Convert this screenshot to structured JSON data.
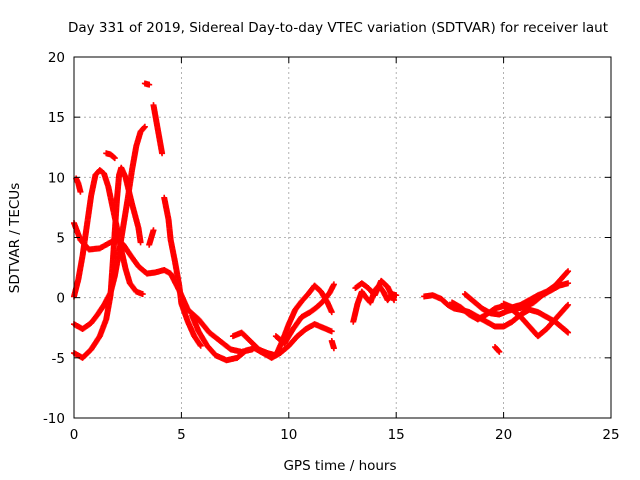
{
  "chart_data": {
    "type": "scatter",
    "title": "Day 331 of 2019, Sidereal Day-to-day VTEC variation (SDTVAR) for receiver laut",
    "xlabel": "GPS time / hours",
    "ylabel": "SDTVAR / TECUs",
    "xlim": [
      0,
      25
    ],
    "ylim": [
      -10,
      20
    ],
    "xticks": [
      "0",
      "5",
      "10",
      "15",
      "20",
      "25"
    ],
    "yticks": [
      "-10",
      "-5",
      "0",
      "5",
      "10",
      "15",
      "20"
    ],
    "grid": true,
    "marker": "+",
    "series": [
      {
        "name": "SDTVAR",
        "color": "#ff0000",
        "tracks": [
          [
            [
              0.0,
              6.2
            ],
            [
              0.3,
              4.8
            ],
            [
              0.7,
              4.0
            ],
            [
              1.2,
              4.1
            ],
            [
              1.7,
              4.6
            ],
            [
              2.0,
              4.9
            ],
            [
              2.3,
              4.4
            ],
            [
              2.6,
              3.6
            ],
            [
              3.0,
              2.6
            ],
            [
              3.4,
              2.0
            ],
            [
              3.8,
              2.1
            ],
            [
              4.2,
              2.3
            ],
            [
              4.5,
              2.0
            ],
            [
              4.9,
              0.6
            ],
            [
              5.3,
              -1.0
            ],
            [
              5.8,
              -1.8
            ],
            [
              6.3,
              -2.9
            ],
            [
              6.8,
              -3.6
            ],
            [
              7.3,
              -4.3
            ],
            [
              7.8,
              -4.5
            ],
            [
              8.3,
              -4.3
            ]
          ],
          [
            [
              0.0,
              0.1
            ],
            [
              0.2,
              1.5
            ],
            [
              0.4,
              3.5
            ],
            [
              0.6,
              6.0
            ],
            [
              0.8,
              8.5
            ],
            [
              1.0,
              10.2
            ],
            [
              1.2,
              10.6
            ],
            [
              1.4,
              10.3
            ],
            [
              1.6,
              9.2
            ],
            [
              1.8,
              7.5
            ],
            [
              2.0,
              5.8
            ],
            [
              2.2,
              4.0
            ],
            [
              2.4,
              2.4
            ],
            [
              2.6,
              1.2
            ],
            [
              2.9,
              0.5
            ],
            [
              3.2,
              0.3
            ]
          ],
          [
            [
              0.0,
              -2.2
            ],
            [
              0.4,
              -2.6
            ],
            [
              0.8,
              -2.1
            ],
            [
              1.1,
              -1.4
            ],
            [
              1.4,
              -0.6
            ],
            [
              1.7,
              0.4
            ],
            [
              1.9,
              1.8
            ],
            [
              2.1,
              3.8
            ],
            [
              2.3,
              6.0
            ],
            [
              2.5,
              8.2
            ],
            [
              2.7,
              10.6
            ],
            [
              2.9,
              12.6
            ],
            [
              3.1,
              13.8
            ],
            [
              3.3,
              14.2
            ]
          ],
          [
            [
              0.0,
              -4.6
            ],
            [
              0.4,
              -5.0
            ],
            [
              0.8,
              -4.3
            ],
            [
              1.2,
              -3.2
            ],
            [
              1.5,
              -1.8
            ],
            [
              1.7,
              0.2
            ],
            [
              1.8,
              2.8
            ],
            [
              1.9,
              5.5
            ],
            [
              2.0,
              8.2
            ],
            [
              2.1,
              10.2
            ],
            [
              2.2,
              10.8
            ],
            [
              2.4,
              10.0
            ],
            [
              2.7,
              7.8
            ],
            [
              3.0,
              5.8
            ],
            [
              3.1,
              4.6
            ]
          ],
          [
            [
              0.1,
              9.9
            ],
            [
              0.2,
              9.5
            ],
            [
              0.3,
              8.8
            ]
          ],
          [
            [
              1.5,
              12.0
            ],
            [
              1.7,
              11.9
            ],
            [
              1.9,
              11.6
            ]
          ],
          [
            [
              3.3,
              17.8
            ],
            [
              3.5,
              17.7
            ]
          ],
          [
            [
              3.7,
              16.0
            ],
            [
              3.8,
              15.0
            ],
            [
              3.9,
              14.0
            ],
            [
              4.0,
              13.0
            ],
            [
              4.1,
              12.0
            ]
          ],
          [
            [
              4.2,
              8.3
            ],
            [
              4.4,
              6.5
            ],
            [
              4.5,
              4.8
            ],
            [
              4.7,
              3.0
            ],
            [
              4.9,
              1.0
            ],
            [
              5.0,
              -0.5
            ],
            [
              5.3,
              -2.0
            ],
            [
              5.6,
              -3.2
            ],
            [
              5.9,
              -4.0
            ]
          ],
          [
            [
              3.5,
              4.4
            ],
            [
              3.6,
              5.0
            ],
            [
              3.7,
              5.6
            ]
          ],
          [
            [
              5.5,
              -1.5
            ],
            [
              5.8,
              -2.8
            ],
            [
              6.2,
              -4.0
            ],
            [
              6.6,
              -4.8
            ],
            [
              7.1,
              -5.2
            ],
            [
              7.6,
              -5.0
            ],
            [
              8.0,
              -4.4
            ],
            [
              8.4,
              -4.2
            ],
            [
              8.8,
              -4.6
            ],
            [
              9.2,
              -5.0
            ],
            [
              9.6,
              -4.6
            ],
            [
              10.0,
              -4.0
            ],
            [
              10.4,
              -3.2
            ],
            [
              10.8,
              -2.6
            ],
            [
              11.2,
              -2.2
            ],
            [
              11.6,
              -2.5
            ],
            [
              12.0,
              -2.8
            ]
          ],
          [
            [
              7.4,
              -3.2
            ],
            [
              7.8,
              -2.9
            ],
            [
              8.2,
              -3.6
            ],
            [
              8.6,
              -4.3
            ],
            [
              9.0,
              -4.6
            ],
            [
              9.4,
              -4.8
            ],
            [
              9.7,
              -3.6
            ],
            [
              10.0,
              -2.2
            ],
            [
              10.3,
              -1.0
            ],
            [
              10.6,
              -0.3
            ],
            [
              10.9,
              0.3
            ],
            [
              11.2,
              1.0
            ],
            [
              11.5,
              0.5
            ],
            [
              11.8,
              -0.4
            ],
            [
              12.0,
              -1.2
            ]
          ],
          [
            [
              9.4,
              -3.2
            ],
            [
              9.8,
              -3.8
            ],
            [
              10.2,
              -2.6
            ],
            [
              10.6,
              -1.6
            ],
            [
              11.0,
              -1.2
            ],
            [
              11.3,
              -0.8
            ],
            [
              11.6,
              -0.3
            ],
            [
              11.9,
              0.4
            ],
            [
              12.1,
              1.1
            ]
          ],
          [
            [
              12.0,
              -3.6
            ],
            [
              12.1,
              -4.2
            ]
          ],
          [
            [
              13.0,
              -2.0
            ],
            [
              13.2,
              -0.5
            ],
            [
              13.4,
              0.5
            ],
            [
              13.6,
              0.0
            ],
            [
              13.8,
              -0.4
            ],
            [
              14.0,
              0.6
            ],
            [
              14.2,
              1.0
            ],
            [
              14.4,
              0.5
            ],
            [
              14.6,
              -0.2
            ],
            [
              14.8,
              0.3
            ],
            [
              15.0,
              0.2
            ]
          ],
          [
            [
              13.1,
              0.8
            ],
            [
              13.4,
              1.2
            ],
            [
              13.7,
              0.8
            ],
            [
              14.0,
              0.2
            ],
            [
              14.3,
              1.4
            ],
            [
              14.6,
              0.9
            ],
            [
              14.9,
              -0.2
            ]
          ],
          [
            [
              16.3,
              0.1
            ],
            [
              16.7,
              0.2
            ],
            [
              17.1,
              -0.1
            ],
            [
              17.4,
              -0.6
            ],
            [
              17.7,
              -0.9
            ],
            [
              18.0,
              -1.0
            ],
            [
              18.4,
              -1.2
            ],
            [
              18.8,
              -1.6
            ],
            [
              19.2,
              -2.0
            ],
            [
              19.6,
              -2.4
            ],
            [
              20.0,
              -2.4
            ],
            [
              20.4,
              -2.0
            ],
            [
              20.8,
              -1.4
            ],
            [
              21.2,
              -1.0
            ],
            [
              21.6,
              -1.2
            ],
            [
              22.0,
              -1.6
            ],
            [
              22.4,
              -2.0
            ],
            [
              22.8,
              -2.6
            ],
            [
              23.0,
              -2.9
            ]
          ],
          [
            [
              17.6,
              -0.4
            ],
            [
              18.0,
              -0.8
            ],
            [
              18.4,
              -1.4
            ],
            [
              18.8,
              -1.8
            ],
            [
              19.2,
              -1.4
            ],
            [
              19.6,
              -0.9
            ],
            [
              20.0,
              -0.7
            ],
            [
              20.4,
              -1.0
            ],
            [
              20.8,
              -1.6
            ],
            [
              21.2,
              -2.4
            ],
            [
              21.6,
              -3.2
            ],
            [
              22.0,
              -2.6
            ],
            [
              22.4,
              -1.8
            ],
            [
              22.8,
              -1.0
            ],
            [
              23.0,
              -0.6
            ]
          ],
          [
            [
              18.2,
              0.3
            ],
            [
              18.6,
              -0.3
            ],
            [
              19.0,
              -0.9
            ],
            [
              19.4,
              -1.3
            ],
            [
              19.8,
              -1.4
            ],
            [
              20.2,
              -1.1
            ],
            [
              20.6,
              -0.9
            ],
            [
              21.0,
              -0.8
            ],
            [
              21.4,
              -0.4
            ],
            [
              21.8,
              0.2
            ],
            [
              22.2,
              0.6
            ],
            [
              22.6,
              1.0
            ],
            [
              23.0,
              1.2
            ]
          ],
          [
            [
              20.0,
              -0.5
            ],
            [
              20.4,
              -0.8
            ],
            [
              20.8,
              -0.6
            ],
            [
              21.2,
              -0.2
            ],
            [
              21.6,
              0.2
            ],
            [
              22.0,
              0.5
            ],
            [
              22.4,
              1.0
            ],
            [
              22.8,
              1.8
            ],
            [
              23.0,
              2.2
            ]
          ],
          [
            [
              19.6,
              -4.1
            ],
            [
              19.8,
              -4.5
            ]
          ]
        ]
      }
    ]
  }
}
